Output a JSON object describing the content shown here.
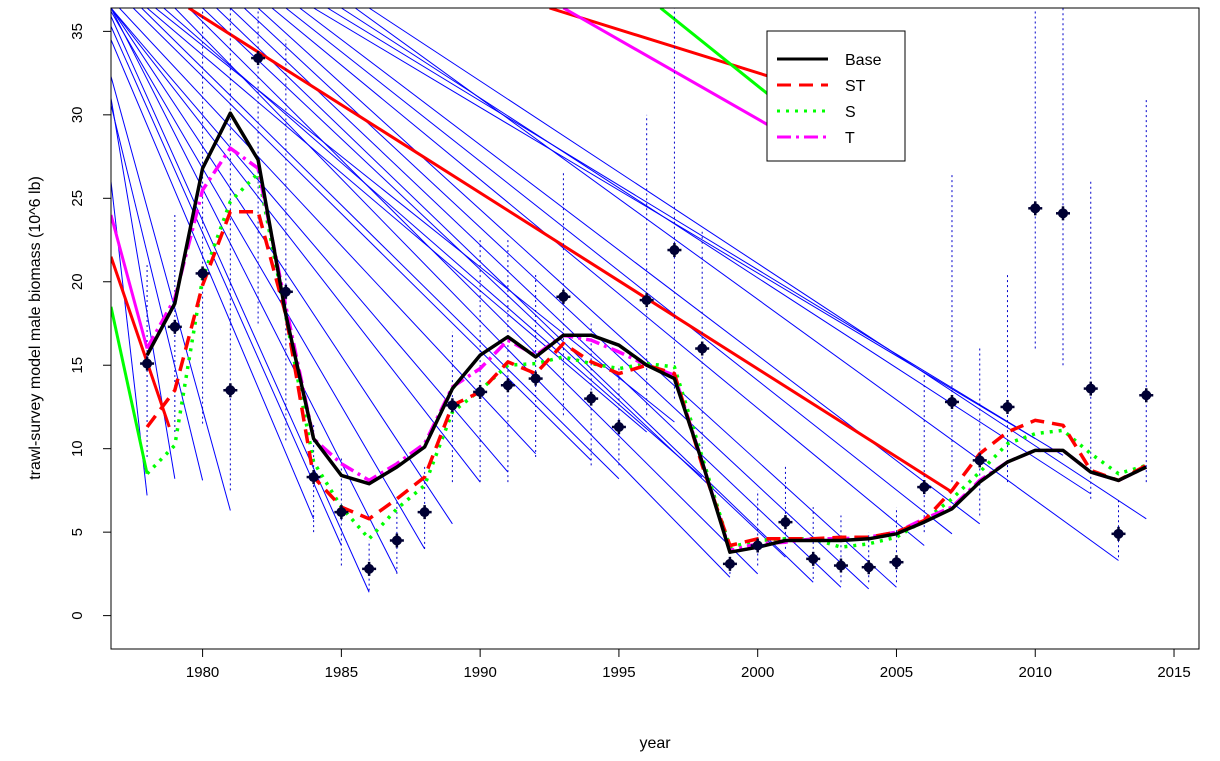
{
  "chart_data": {
    "type": "line",
    "xlabel": "year",
    "ylabel": "trawl-survey model male biomass (10^6 lb)",
    "xlim": [
      1976.7,
      2015.9
    ],
    "ylim": [
      -2,
      36.4
    ],
    "xticks": [
      1980,
      1985,
      1990,
      1995,
      2000,
      2005,
      2010,
      2015
    ],
    "yticks": [
      0,
      5,
      10,
      15,
      20,
      25,
      30,
      35
    ],
    "grid": false,
    "legend_position": "top-right",
    "series": [
      {
        "name": "Base",
        "color": "#000000",
        "dash": "solid",
        "x": [
          1978,
          1979,
          1980,
          1981,
          1982,
          1983,
          1984,
          1985,
          1986,
          1987,
          1988,
          1989,
          1990,
          1991,
          1992,
          1993,
          1994,
          1995,
          1996,
          1997,
          1998,
          1999,
          2000,
          2001,
          2002,
          2003,
          2004,
          2005,
          2006,
          2007,
          2008,
          2009,
          2010,
          2011,
          2012,
          2013,
          2014
        ],
        "y": [
          15.6,
          18.7,
          26.8,
          30.1,
          27.3,
          18.0,
          10.6,
          8.4,
          7.9,
          8.9,
          10.1,
          13.6,
          15.6,
          16.7,
          15.5,
          16.8,
          16.8,
          16.2,
          15.0,
          14.2,
          9.2,
          3.8,
          4.1,
          4.5,
          4.5,
          4.5,
          4.6,
          4.9,
          5.6,
          6.4,
          8.0,
          9.2,
          9.9,
          9.9,
          8.6,
          8.1,
          8.9
        ]
      },
      {
        "name": "ST",
        "color": "#ff0000",
        "dash": "long-dash",
        "x": [
          1978,
          1979,
          1980,
          1981,
          1982,
          1983,
          1984,
          1985,
          1986,
          1987,
          1988,
          1989,
          1990,
          1991,
          1992,
          1993,
          1994,
          1995,
          1996,
          1997,
          1998,
          1999,
          2000,
          2001,
          2002,
          2003,
          2004,
          2005,
          2006,
          2007,
          2008,
          2009,
          2010,
          2011,
          2012,
          2013,
          2014
        ],
        "y": [
          11.3,
          13.5,
          19.8,
          24.2,
          24.2,
          18.0,
          8.3,
          6.5,
          5.8,
          7.0,
          8.3,
          12.6,
          13.4,
          15.2,
          14.5,
          16.3,
          15.2,
          14.5,
          15.0,
          14.5,
          9.0,
          4.2,
          4.6,
          4.6,
          4.6,
          4.7,
          4.7,
          5.0,
          5.7,
          7.5,
          9.7,
          11.0,
          11.7,
          11.4,
          8.7,
          8.1,
          9.0
        ]
      },
      {
        "name": "S",
        "color": "#00ff00",
        "dash": "dotted",
        "x": [
          1978,
          1979,
          1980,
          1981,
          1982,
          1983,
          1984,
          1985,
          1986,
          1987,
          1988,
          1989,
          1990,
          1991,
          1992,
          1993,
          1994,
          1995,
          1996,
          1997,
          1998,
          1999,
          2000,
          2001,
          2002,
          2003,
          2004,
          2005,
          2006,
          2007,
          2008,
          2009,
          2010,
          2011,
          2012,
          2013,
          2014
        ],
        "y": [
          8.5,
          10.2,
          20.2,
          24.8,
          26.5,
          17.9,
          9.2,
          6.5,
          4.6,
          6.4,
          7.8,
          12.2,
          13.5,
          15.0,
          15.1,
          15.5,
          15.1,
          14.8,
          15.1,
          14.9,
          9.5,
          4.1,
          4.5,
          4.6,
          4.6,
          4.1,
          4.3,
          4.7,
          5.7,
          7.0,
          8.6,
          10.3,
          10.9,
          11.1,
          9.7,
          8.5,
          9.0
        ]
      },
      {
        "name": "T",
        "color": "#ff00ff",
        "dash": "dash-dot",
        "x": [
          1978,
          1979,
          1980,
          1981,
          1982,
          1983,
          1984,
          1985,
          1986,
          1987,
          1988,
          1989,
          1990,
          1991,
          1992,
          1993,
          1994,
          1995,
          1996,
          1997,
          1998,
          1999,
          2000,
          2001,
          2002,
          2003,
          2004,
          2005,
          2006,
          2007,
          2008,
          2009,
          2010,
          2011,
          2012,
          2013,
          2014
        ],
        "y": [
          16.0,
          19.0,
          25.5,
          28.0,
          26.8,
          18.5,
          10.6,
          9.1,
          8.1,
          9.1,
          10.3,
          13.7,
          14.8,
          16.5,
          15.6,
          16.8,
          16.5,
          15.8,
          15.0,
          14.4,
          9.2,
          3.9,
          4.3,
          4.4,
          4.6,
          4.6,
          4.7,
          5.0,
          5.8,
          6.5,
          8.1,
          9.2,
          9.9,
          9.9,
          8.6,
          8.1,
          8.9
        ]
      }
    ],
    "observations": {
      "color": "#000033",
      "x": [
        1978,
        1979,
        1980,
        1981,
        1982,
        1983,
        1984,
        1985,
        1986,
        1987,
        1988,
        1989,
        1990,
        1991,
        1992,
        1993,
        1994,
        1995,
        1996,
        1997,
        1998,
        1999,
        2000,
        2001,
        2002,
        2003,
        2004,
        2005,
        2006,
        2007,
        2008,
        2009,
        2010,
        2011,
        2012,
        2013,
        2014
      ],
      "y": [
        15.1,
        17.3,
        20.5,
        13.5,
        33.4,
        19.4,
        8.3,
        6.2,
        2.8,
        4.5,
        6.2,
        12.6,
        13.4,
        13.8,
        14.2,
        19.1,
        13.0,
        11.3,
        18.9,
        21.9,
        16.0,
        3.1,
        4.2,
        5.6,
        3.4,
        3.0,
        2.9,
        3.2,
        7.7,
        12.8,
        9.3,
        12.5,
        24.4,
        24.1,
        13.6,
        4.9,
        13.2
      ]
    },
    "error_bars": {
      "color": "#0000cc",
      "style": "dotted",
      "x": [
        1978,
        1979,
        1980,
        1981,
        1982,
        1983,
        1984,
        1985,
        1986,
        1987,
        1988,
        1989,
        1990,
        1991,
        1992,
        1993,
        1994,
        1995,
        1996,
        1997,
        1998,
        1999,
        2000,
        2001,
        2002,
        2003,
        2004,
        2005,
        2006,
        2007,
        2008,
        2009,
        2010,
        2011,
        2012,
        2013,
        2014
      ],
      "low": [
        9.5,
        11.0,
        11.5,
        7.5,
        17.5,
        10.5,
        5.0,
        3.0,
        1.5,
        2.5,
        4.0,
        8.0,
        8.0,
        8.0,
        9.5,
        12.0,
        9.0,
        9.0,
        12.0,
        13.0,
        10.0,
        2.5,
        3.0,
        4.0,
        2.2,
        2.0,
        2.0,
        2.0,
        5.0,
        8.0,
        6.0,
        8.0,
        16.0,
        15.0,
        7.0,
        3.5,
        8.0
      ],
      "high": [
        21.0,
        24.0,
        36.4,
        36.4,
        36.4,
        34.5,
        11.5,
        9.5,
        4.5,
        7.0,
        9.0,
        17.0,
        22.5,
        22.5,
        20.5,
        26.5,
        17.5,
        15.0,
        30.0,
        36.4,
        23.0,
        4.5,
        7.5,
        9.0,
        6.5,
        6.0,
        5.0,
        6.5,
        14.5,
        26.5,
        16.0,
        20.5,
        36.4,
        36.4,
        26.0,
        7.0,
        31.0
      ]
    },
    "retrospective_lines": {
      "color": "#0000ff",
      "segments": [
        [
          1976.7,
          26.0,
          1978,
          7.2
        ],
        [
          1976.7,
          31.0,
          1979,
          8.2
        ],
        [
          1976.7,
          30.6,
          1980,
          8.1
        ],
        [
          1976.7,
          32.3,
          1981,
          6.3
        ],
        [
          1976.7,
          34.5,
          1984,
          5.8
        ],
        [
          1976.7,
          35.3,
          1985,
          4.2
        ],
        [
          1976.7,
          35.9,
          1986,
          1.4
        ],
        [
          1976.7,
          36.4,
          1987,
          2.6
        ],
        [
          1976.7,
          36.2,
          1988,
          4.0
        ],
        [
          1976.7,
          36.4,
          1989,
          5.5
        ],
        [
          1976.7,
          36.4,
          1990,
          8.0
        ],
        [
          1976.7,
          36.4,
          1991,
          8.6
        ],
        [
          1977.0,
          36.4,
          1992,
          9.7
        ],
        [
          1977.5,
          36.4,
          1994,
          9.3
        ],
        [
          1977.8,
          36.4,
          1995,
          8.2
        ],
        [
          1978.0,
          36.4,
          1996,
          11.0
        ],
        [
          1978.3,
          36.4,
          1997,
          11.6
        ],
        [
          1978.6,
          36.4,
          1998,
          8.3
        ],
        [
          1979.0,
          36.4,
          1999,
          2.3
        ],
        [
          1979.5,
          36.4,
          2000,
          2.5
        ],
        [
          1980.0,
          36.4,
          2001,
          3.5
        ],
        [
          1980.5,
          36.4,
          2002,
          2.0
        ],
        [
          1981.0,
          36.4,
          2003,
          1.7
        ],
        [
          1981.5,
          36.4,
          2004,
          1.6
        ],
        [
          1982.0,
          36.4,
          2005,
          1.7
        ],
        [
          1982.5,
          36.4,
          2006,
          4.2
        ],
        [
          1983.0,
          36.4,
          2007,
          4.9
        ],
        [
          1983.5,
          36.4,
          2008,
          5.5
        ],
        [
          1984.0,
          36.4,
          2010,
          10.6
        ],
        [
          1984.5,
          36.4,
          2011,
          9.6
        ],
        [
          1985.0,
          36.4,
          2012,
          7.3
        ],
        [
          1985.5,
          36.4,
          2013,
          3.3
        ],
        [
          1986.0,
          36.4,
          2014,
          5.8
        ]
      ]
    },
    "retrospective_colored": [
      {
        "color": "#ff0000",
        "segments": [
          [
            1976.7,
            21.5,
            1978.8,
            11.3
          ],
          [
            1979.5,
            36.4,
            2007,
            7.4
          ],
          [
            1992.5,
            36.4,
            2001,
            32.0
          ]
        ]
      },
      {
        "color": "#00ff00",
        "segments": [
          [
            1976.7,
            18.5,
            1978,
            8.5
          ],
          [
            1996.5,
            36.4,
            2001,
            30.4
          ]
        ]
      },
      {
        "color": "#ff00ff",
        "segments": [
          [
            1976.7,
            24.0,
            1978,
            16.0
          ],
          [
            1993.0,
            36.4,
            2001,
            28.8
          ]
        ]
      }
    ]
  }
}
